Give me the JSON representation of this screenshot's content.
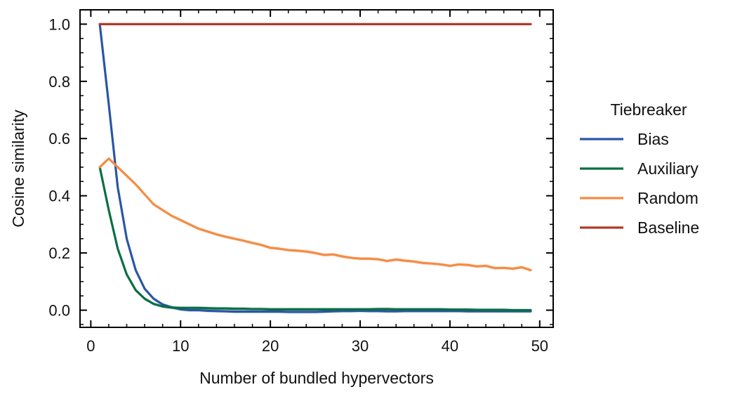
{
  "chart_data": {
    "type": "line",
    "title": "",
    "xlabel": "Number of bundled hypervectors",
    "ylabel": "Cosine similarity",
    "xlim": [
      -1.2,
      51.5
    ],
    "ylim": [
      -0.06,
      1.05
    ],
    "xticks": [
      0,
      10,
      20,
      30,
      40,
      50
    ],
    "yticks": [
      0.0,
      0.2,
      0.4,
      0.6,
      0.8,
      1.0
    ],
    "xtick_labels": [
      "0",
      "10",
      "20",
      "30",
      "40",
      "50"
    ],
    "ytick_labels": [
      "0.0",
      "0.2",
      "0.4",
      "0.6",
      "0.8",
      "1.0"
    ],
    "grid": false,
    "legend": {
      "title": "Tiebreaker",
      "placement": "right outside"
    },
    "series": [
      {
        "name": "Bias",
        "color": "#2a56a3",
        "x": [
          1,
          2,
          3,
          4,
          5,
          6,
          7,
          8,
          9,
          10,
          11,
          12,
          13,
          14,
          15,
          16,
          17,
          18,
          19,
          20,
          21,
          22,
          23,
          24,
          25,
          26,
          27,
          28,
          29,
          30,
          31,
          32,
          33,
          34,
          35,
          36,
          37,
          38,
          39,
          40,
          41,
          42,
          43,
          44,
          45,
          46,
          47,
          48,
          49
        ],
        "y": [
          1.0,
          0.72,
          0.43,
          0.25,
          0.14,
          0.075,
          0.04,
          0.02,
          0.01,
          0.003,
          0.0,
          0.0,
          -0.002,
          -0.003,
          -0.004,
          -0.005,
          -0.005,
          -0.005,
          -0.005,
          -0.005,
          -0.005,
          -0.006,
          -0.006,
          -0.006,
          -0.006,
          -0.005,
          -0.004,
          -0.003,
          -0.003,
          -0.002,
          -0.003,
          -0.003,
          -0.004,
          -0.004,
          -0.003,
          -0.003,
          -0.003,
          -0.003,
          -0.003,
          -0.003,
          -0.003,
          -0.004,
          -0.004,
          -0.004,
          -0.004,
          -0.004,
          -0.004,
          -0.004,
          -0.004
        ]
      },
      {
        "name": "Auxiliary",
        "color": "#0a6e45",
        "x": [
          1,
          2,
          3,
          4,
          5,
          6,
          7,
          8,
          9,
          10,
          11,
          12,
          13,
          14,
          15,
          16,
          17,
          18,
          19,
          20,
          21,
          22,
          23,
          24,
          25,
          26,
          27,
          28,
          29,
          30,
          31,
          32,
          33,
          34,
          35,
          36,
          37,
          38,
          39,
          40,
          41,
          42,
          43,
          44,
          45,
          46,
          47,
          48,
          49
        ],
        "y": [
          0.5,
          0.35,
          0.215,
          0.125,
          0.07,
          0.04,
          0.022,
          0.013,
          0.009,
          0.008,
          0.008,
          0.008,
          0.007,
          0.006,
          0.006,
          0.005,
          0.005,
          0.004,
          0.004,
          0.003,
          0.003,
          0.003,
          0.003,
          0.003,
          0.003,
          0.003,
          0.003,
          0.003,
          0.003,
          0.003,
          0.003,
          0.004,
          0.004,
          0.003,
          0.003,
          0.003,
          0.003,
          0.003,
          0.003,
          0.002,
          0.002,
          0.002,
          0.001,
          0.001,
          0.001,
          0.001,
          0.0,
          0.0,
          0.0
        ]
      },
      {
        "name": "Random",
        "color": "#f48c45",
        "x": [
          1,
          2,
          3,
          4,
          5,
          6,
          7,
          8,
          9,
          10,
          11,
          12,
          13,
          14,
          15,
          16,
          17,
          18,
          19,
          20,
          21,
          22,
          23,
          24,
          25,
          26,
          27,
          28,
          29,
          30,
          31,
          32,
          33,
          34,
          35,
          36,
          37,
          38,
          39,
          40,
          41,
          42,
          43,
          44,
          45,
          46,
          47,
          48,
          49
        ],
        "y": [
          0.5,
          0.53,
          0.5,
          0.47,
          0.44,
          0.405,
          0.37,
          0.35,
          0.33,
          0.315,
          0.3,
          0.285,
          0.275,
          0.265,
          0.257,
          0.25,
          0.243,
          0.235,
          0.228,
          0.218,
          0.215,
          0.21,
          0.208,
          0.205,
          0.2,
          0.193,
          0.195,
          0.188,
          0.183,
          0.18,
          0.18,
          0.178,
          0.172,
          0.177,
          0.173,
          0.17,
          0.165,
          0.163,
          0.16,
          0.155,
          0.16,
          0.158,
          0.153,
          0.155,
          0.147,
          0.148,
          0.145,
          0.15,
          0.14
        ]
      },
      {
        "name": "Baseline",
        "color": "#b33a2b",
        "x": [
          1,
          49
        ],
        "y": [
          1.0,
          1.0
        ]
      }
    ]
  }
}
